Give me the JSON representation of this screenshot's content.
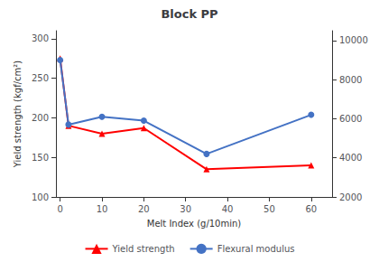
{
  "chart_data": {
    "type": "line",
    "title": "Block PP",
    "xlabel": "Melt Index (g/10min)",
    "ylabel": "Yield strength (kgf/cm²)",
    "x": [
      0,
      2,
      10,
      20,
      35,
      60
    ],
    "series": [
      {
        "name": "Yield strength",
        "color": "#FF0000",
        "marker": "triangle",
        "values": [
          275,
          190,
          180,
          187,
          135,
          140
        ]
      },
      {
        "name": "Flexural modulus",
        "color": "#4472C4",
        "marker": "circle",
        "axis": "y2",
        "values": [
          9000,
          5700,
          6100,
          5900,
          4200,
          6200
        ]
      }
    ],
    "xlim": [
      -1,
      65
    ],
    "xticks": [
      0,
      10,
      20,
      30,
      40,
      50,
      60
    ],
    "ylim": [
      100,
      310
    ],
    "yticks": [
      100,
      150,
      200,
      250,
      300
    ],
    "y2lim": [
      2000,
      10500
    ],
    "y2ticks": [
      2000,
      4000,
      6000,
      8000,
      10000
    ],
    "grid": false,
    "legend": "bottom"
  }
}
